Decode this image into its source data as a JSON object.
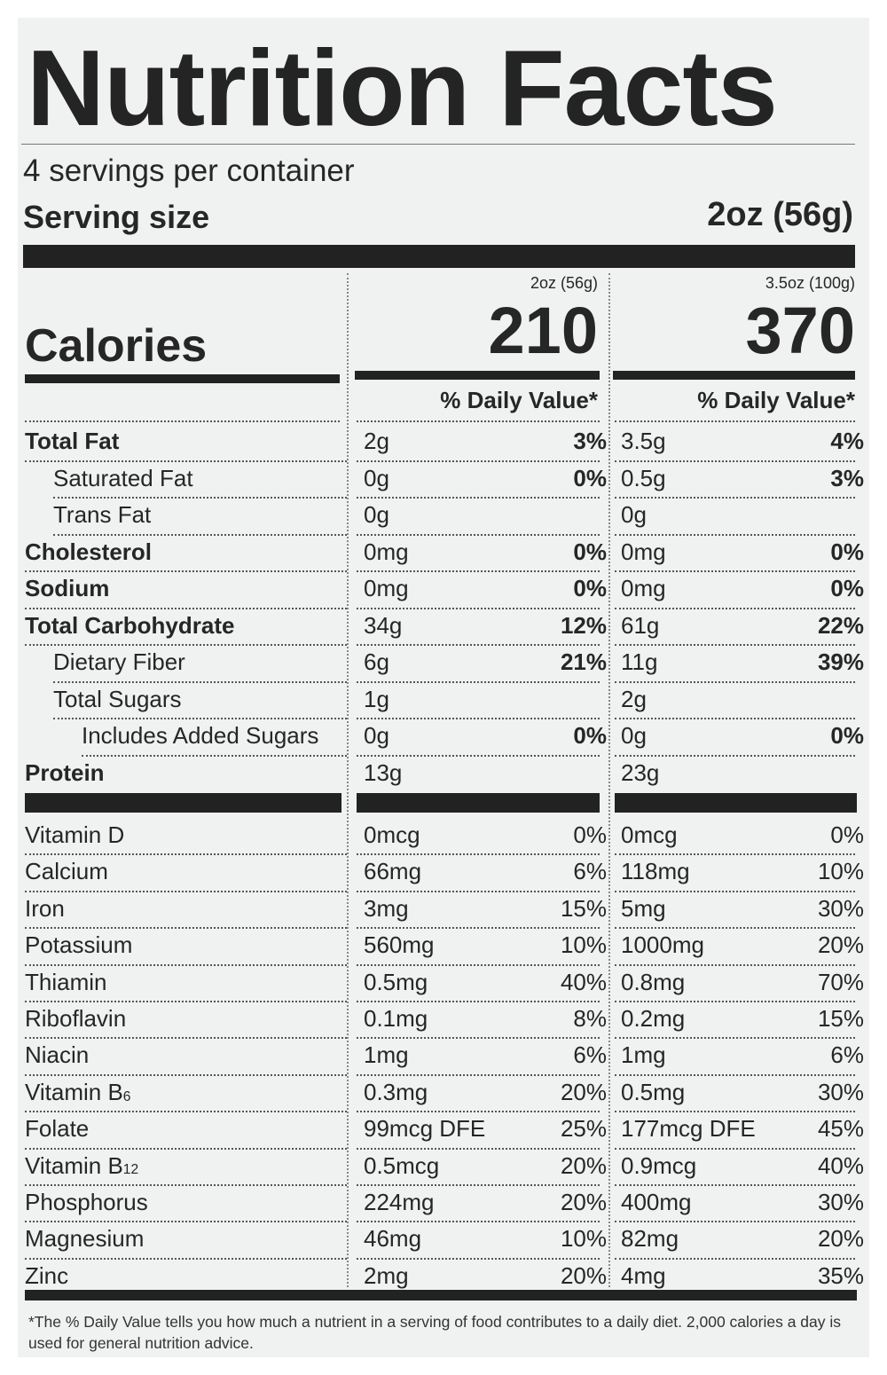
{
  "header": {
    "title": "Nutrition Facts",
    "servings_per_container": "4 servings per container",
    "serving_size_label": "Serving size",
    "serving_size_value": "2oz (56g)"
  },
  "columns": [
    {
      "amount": "2oz (56g)",
      "calories": "210"
    },
    {
      "amount": "3.5oz (100g)",
      "calories": "370"
    }
  ],
  "calories_label": "Calories",
  "daily_value_header": "% Daily Value*",
  "nutrients": [
    {
      "name": "Total Fat",
      "c1_amt": "2g",
      "c1_dv": "3%",
      "c2_amt": "3.5g",
      "c2_dv": "4%"
    },
    {
      "name": "Saturated Fat",
      "c1_amt": "0g",
      "c1_dv": "0%",
      "c2_amt": "0.5g",
      "c2_dv": "3%"
    },
    {
      "name": "Trans Fat",
      "c1_amt": "0g",
      "c1_dv": "",
      "c2_amt": "0g",
      "c2_dv": ""
    },
    {
      "name": "Cholesterol",
      "c1_amt": "0mg",
      "c1_dv": "0%",
      "c2_amt": "0mg",
      "c2_dv": "0%"
    },
    {
      "name": "Sodium",
      "c1_amt": "0mg",
      "c1_dv": "0%",
      "c2_amt": "0mg",
      "c2_dv": "0%"
    },
    {
      "name": "Total Carbohydrate",
      "c1_amt": "34g",
      "c1_dv": "12%",
      "c2_amt": "61g",
      "c2_dv": "22%"
    },
    {
      "name": "Dietary Fiber",
      "c1_amt": "6g",
      "c1_dv": "21%",
      "c2_amt": "11g",
      "c2_dv": "39%"
    },
    {
      "name": "Total Sugars",
      "c1_amt": "1g",
      "c1_dv": "",
      "c2_amt": "2g",
      "c2_dv": ""
    },
    {
      "name": "Includes Added Sugars",
      "c1_amt": "0g",
      "c1_dv": "0%",
      "c2_amt": "0g",
      "c2_dv": "0%"
    },
    {
      "name": "Protein",
      "c1_amt": "13g",
      "c1_dv": "",
      "c2_amt": "23g",
      "c2_dv": ""
    }
  ],
  "vitamins": [
    {
      "name": "Vitamin D",
      "c1_amt": "0mcg",
      "c1_dv": "0%",
      "c2_amt": "0mcg",
      "c2_dv": "0%"
    },
    {
      "name": "Calcium",
      "c1_amt": "66mg",
      "c1_dv": "6%",
      "c2_amt": "118mg",
      "c2_dv": "10%"
    },
    {
      "name": "Iron",
      "c1_amt": "3mg",
      "c1_dv": "15%",
      "c2_amt": "5mg",
      "c2_dv": "30%"
    },
    {
      "name": "Potassium",
      "c1_amt": "560mg",
      "c1_dv": "10%",
      "c2_amt": "1000mg",
      "c2_dv": "20%"
    },
    {
      "name": "Thiamin",
      "c1_amt": "0.5mg",
      "c1_dv": "40%",
      "c2_amt": "0.8mg",
      "c2_dv": "70%"
    },
    {
      "name": "Riboflavin",
      "c1_amt": "0.1mg",
      "c1_dv": "8%",
      "c2_amt": "0.2mg",
      "c2_dv": "15%"
    },
    {
      "name": "Niacin",
      "c1_amt": "1mg",
      "c1_dv": "6%",
      "c2_amt": "1mg",
      "c2_dv": "6%"
    },
    {
      "name": "Vitamin B",
      "sub": "6",
      "c1_amt": "0.3mg",
      "c1_dv": "20%",
      "c2_amt": "0.5mg",
      "c2_dv": "30%"
    },
    {
      "name": "Folate",
      "c1_amt": "99mcg DFE",
      "c1_dv": "25%",
      "c2_amt": "177mcg DFE",
      "c2_dv": "45%"
    },
    {
      "name": "Vitamin B",
      "sub": "12",
      "c1_amt": "0.5mcg",
      "c1_dv": "20%",
      "c2_amt": "0.9mcg",
      "c2_dv": "40%"
    },
    {
      "name": "Phosphorus",
      "c1_amt": "224mg",
      "c1_dv": "20%",
      "c2_amt": "400mg",
      "c2_dv": "30%"
    },
    {
      "name": "Magnesium",
      "c1_amt": "46mg",
      "c1_dv": "10%",
      "c2_amt": "82mg",
      "c2_dv": "20%"
    },
    {
      "name": "Zinc",
      "c1_amt": "2mg",
      "c1_dv": "20%",
      "c2_amt": "4mg",
      "c2_dv": "35%"
    }
  ],
  "footnote": "*The % Daily Value tells you how much a nutrient in a serving of food contributes to a daily diet. 2,000 calories a day is used for general nutrition advice."
}
